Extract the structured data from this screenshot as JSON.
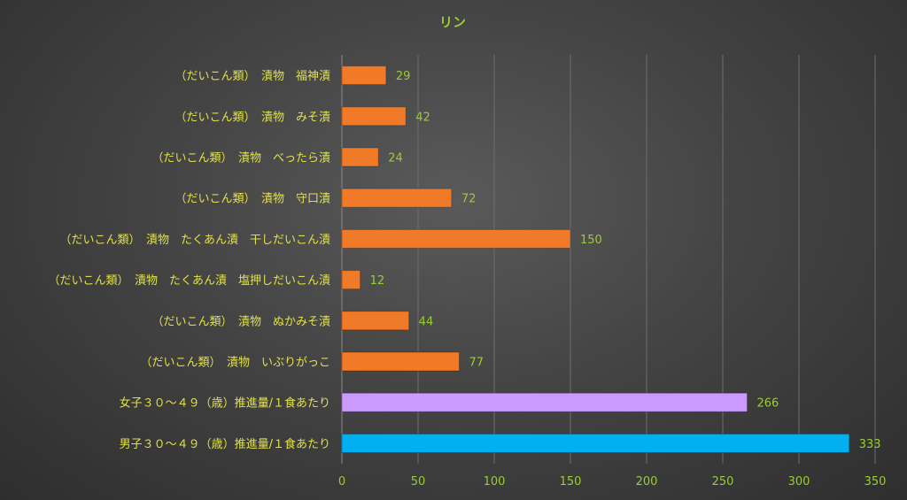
{
  "chart_data": {
    "type": "bar",
    "orientation": "horizontal",
    "title": "リン",
    "xlabel": "",
    "ylabel": "",
    "xlim": [
      0,
      350
    ],
    "ticks": [
      0,
      50,
      100,
      150,
      200,
      250,
      300,
      350
    ],
    "tick_labels": [
      "0",
      "50",
      "100",
      "150",
      "200",
      "250",
      "300",
      "350"
    ],
    "grid": true,
    "legend": "none",
    "categories": [
      "（だいこん類）　漬物　福神漬",
      "（だいこん類）　漬物　みそ漬",
      "（だいこん類）　漬物　べったら漬",
      "（だいこん類）　漬物　守口漬",
      "（だいこん類）　漬物　たくあん漬　干しだいこん漬",
      "（だいこん類）　漬物　たくあん漬　塩押しだいこん漬",
      "（だいこん類）　漬物　ぬかみそ漬",
      "（だいこん類）　漬物　いぶりがっこ",
      "女子３０～４９（歳）推進量/１食あたり",
      "男子３０～４９（歳）推進量/１食あたり"
    ],
    "values": [
      29,
      42,
      24,
      72,
      150,
      12,
      44,
      77,
      266,
      333
    ],
    "value_labels": [
      "29",
      "42",
      "24",
      "72",
      "150",
      "12",
      "44",
      "77",
      "266",
      "333"
    ],
    "colors": [
      "#F07A28",
      "#F07A28",
      "#F07A28",
      "#F07A28",
      "#F07A28",
      "#F07A28",
      "#F07A28",
      "#F07A28",
      "#CC99FF",
      "#00B0F0"
    ]
  }
}
